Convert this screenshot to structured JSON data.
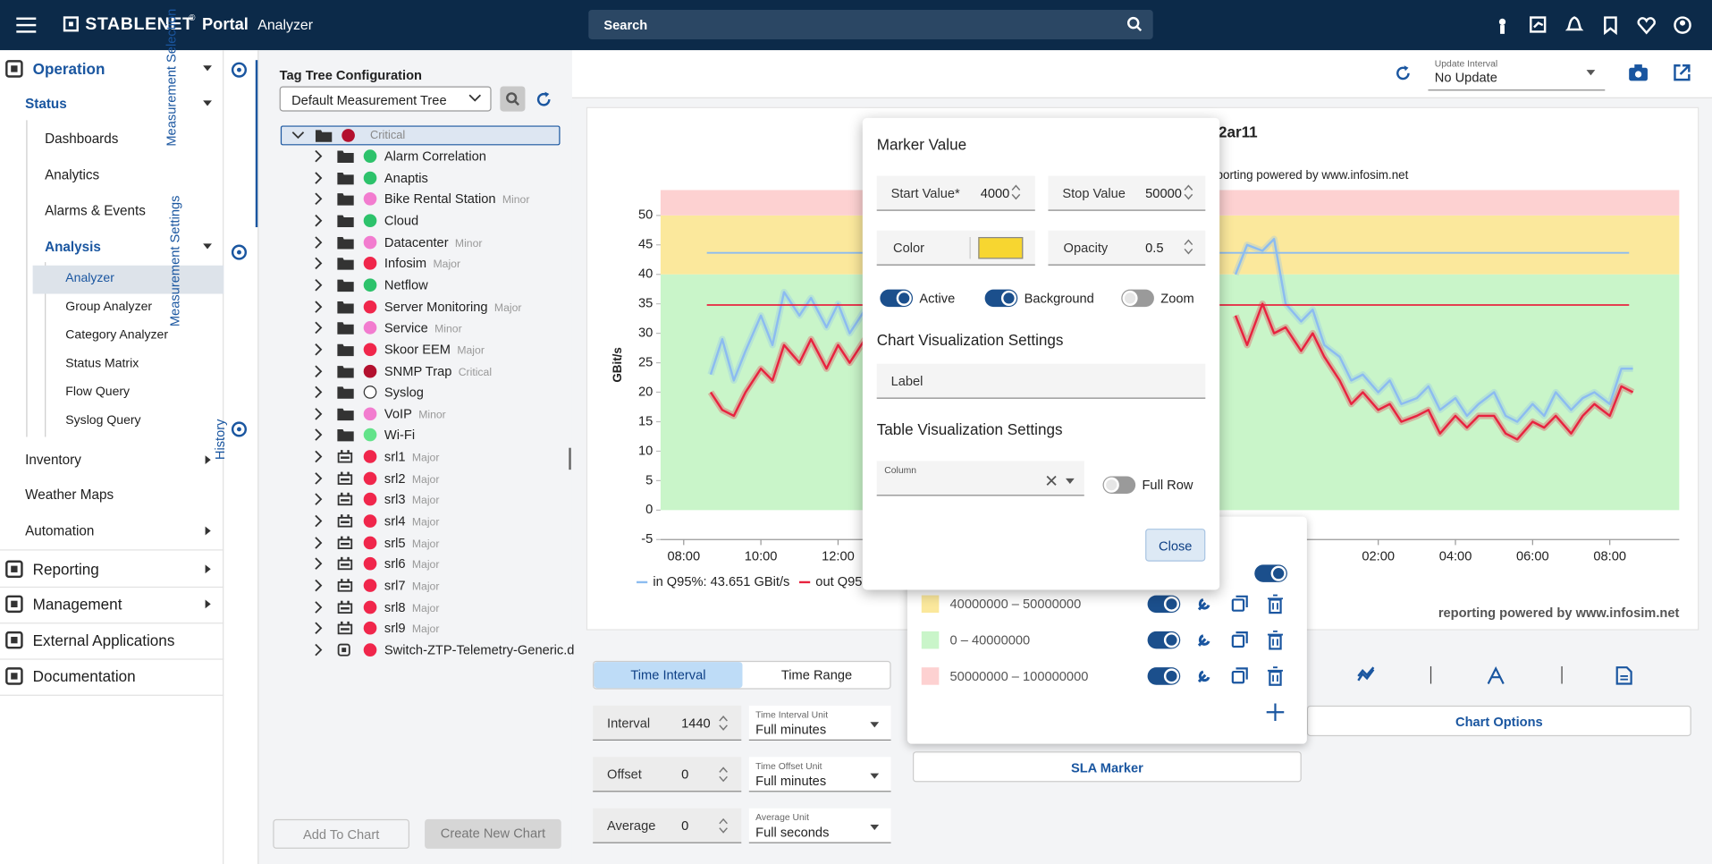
{
  "header": {
    "brand": "STABLENET",
    "reg": "®",
    "portal": "Portal",
    "page": "Analyzer",
    "search": "Search"
  },
  "nav": [
    {
      "label": "Operation",
      "level": 0,
      "active": true,
      "expanded": true
    },
    {
      "label": "Status",
      "level": 1,
      "active": true,
      "expanded": true
    },
    {
      "label": "Dashboards",
      "level": 2
    },
    {
      "label": "Analytics",
      "level": 2
    },
    {
      "label": "Alarms & Events",
      "level": 2
    },
    {
      "label": "Analysis",
      "level": 2,
      "active": true,
      "expanded": true
    },
    {
      "label": "Analyzer",
      "level": 3,
      "active": true,
      "selected": true
    },
    {
      "label": "Group Analyzer",
      "level": 3
    },
    {
      "label": "Category Analyzer",
      "level": 3
    },
    {
      "label": "Status Matrix",
      "level": 3
    },
    {
      "label": "Flow Query",
      "level": 3
    },
    {
      "label": "Syslog Query",
      "level": 3
    },
    {
      "label": "Inventory",
      "level": 1,
      "expanded": false
    },
    {
      "label": "Weather Maps",
      "level": 1
    },
    {
      "label": "Automation",
      "level": 1,
      "expanded": false
    },
    {
      "label": "Reporting",
      "level": 0,
      "expanded": false
    },
    {
      "label": "Management",
      "level": 0,
      "expanded": false
    },
    {
      "label": "External Applications",
      "level": 0
    },
    {
      "label": "Documentation",
      "level": 0
    }
  ],
  "side_tabs": [
    "Measurement Selection",
    "Measurement Settings",
    "History"
  ],
  "tag_tree": {
    "title": "Tag Tree Configuration",
    "selected_tree": "Default Measurement Tree",
    "root": {
      "label": "Critical",
      "color": "#b3102e"
    },
    "items": [
      {
        "label": "Alarm Correlation",
        "color": "#2dc26b"
      },
      {
        "label": "Anaptis",
        "color": "#2dc26b"
      },
      {
        "label": "Bike Rental Station",
        "color": "#f27ccf",
        "severity": "Minor"
      },
      {
        "label": "Cloud",
        "color": "#2dc26b"
      },
      {
        "label": "Datacenter",
        "color": "#f27ccf",
        "severity": "Minor"
      },
      {
        "label": "Infosim",
        "color": "#f0264b",
        "severity": "Major"
      },
      {
        "label": "Netflow",
        "color": "#2dc26b"
      },
      {
        "label": "Server Monitoring",
        "color": "#f0264b",
        "severity": "Major"
      },
      {
        "label": "Service",
        "color": "#f27ccf",
        "severity": "Minor"
      },
      {
        "label": "Skoor EEM",
        "color": "#f0264b",
        "severity": "Major"
      },
      {
        "label": "SNMP Trap",
        "color": "#b3102e",
        "severity": "Critical"
      },
      {
        "label": "Syslog",
        "color": null
      },
      {
        "label": "VoIP",
        "color": "#f27ccf",
        "severity": "Minor"
      },
      {
        "label": "Wi-Fi",
        "color": "#63e38a"
      },
      {
        "label": "srl1",
        "color": "#f0264b",
        "severity": "Major",
        "kind": "device"
      },
      {
        "label": "srl2",
        "color": "#f0264b",
        "severity": "Major",
        "kind": "device"
      },
      {
        "label": "srl3",
        "color": "#f0264b",
        "severity": "Major",
        "kind": "device"
      },
      {
        "label": "srl4",
        "color": "#f0264b",
        "severity": "Major",
        "kind": "device"
      },
      {
        "label": "srl5",
        "color": "#f0264b",
        "severity": "Major",
        "kind": "device"
      },
      {
        "label": "srl6",
        "color": "#f0264b",
        "severity": "Major",
        "kind": "device"
      },
      {
        "label": "srl7",
        "color": "#f0264b",
        "severity": "Major",
        "kind": "device"
      },
      {
        "label": "srl8",
        "color": "#f0264b",
        "severity": "Major",
        "kind": "device"
      },
      {
        "label": "srl9",
        "color": "#f0264b",
        "severity": "Major",
        "kind": "device"
      },
      {
        "label": "Switch-ZTP-Telemetry-Generic.d",
        "color": "#f0264b",
        "kind": "template"
      }
    ],
    "buttons": [
      "Add To Chart",
      "Create New Chart"
    ]
  },
  "toolbar": {
    "update_label": "Update Interval",
    "update_value": "No Update"
  },
  "chart_data": {
    "type": "line",
    "title": "2ar11",
    "subtitle": "porting powered by www.infosim.net",
    "footer": "reporting powered by www.infosim.net",
    "y_label": "GBit/s",
    "xlim": [
      7.4,
      33.8
    ],
    "ylim": [
      -5,
      54.3
    ],
    "xticks": [
      {
        "value": 8,
        "label": "08:00"
      },
      {
        "value": 10,
        "label": "10:00"
      },
      {
        "value": 12,
        "label": "12:00"
      },
      {
        "value": 26,
        "label": "02:00"
      },
      {
        "value": 28,
        "label": "04:00"
      },
      {
        "value": 30,
        "label": "06:00"
      },
      {
        "value": 32,
        "label": "08:00"
      }
    ],
    "yticks": [
      -5,
      0,
      5,
      10,
      15,
      20,
      25,
      30,
      35,
      40,
      45,
      50
    ],
    "bands": [
      {
        "from": 0,
        "to": 40,
        "color": "#c9f5c9"
      },
      {
        "from": 40,
        "to": 50,
        "color": "#fbe89c"
      },
      {
        "from": 50,
        "to": 100,
        "color": "#fdd1d1"
      }
    ],
    "q95_x": [
      8.6,
      32.5
    ],
    "x": [
      8.7,
      9.0,
      9.3,
      9.6,
      10.0,
      10.3,
      10.6,
      11.0,
      11.3,
      11.7,
      12.0,
      12.3,
      12.7,
      17.5,
      22.3,
      22.6,
      23.0,
      23.3,
      23.6,
      24.0,
      24.3,
      24.6,
      25.0,
      25.3,
      25.6,
      26.0,
      26.3,
      26.6,
      27.0,
      27.3,
      27.6,
      28.0,
      28.3,
      28.6,
      29.0,
      29.3,
      29.6,
      30.0,
      30.3,
      30.6,
      31.0,
      31.3,
      31.6,
      32.0,
      32.3,
      32.6
    ],
    "series": [
      {
        "name": "in Q95%: 43.651 GBit/s",
        "color": "#8cbcf0",
        "q95": 43.651,
        "values": [
          23,
          29,
          22,
          27,
          33,
          28,
          37,
          33,
          36,
          31,
          35,
          30,
          34,
          null,
          40,
          45,
          44,
          46,
          35,
          32,
          34,
          28,
          26,
          22,
          23,
          20,
          22,
          18,
          19,
          21,
          17,
          19,
          16,
          18,
          20,
          16,
          15,
          18,
          16,
          20,
          17,
          19,
          20,
          18,
          24,
          24
        ]
      },
      {
        "name": "out Q95%",
        "color": "#e8233f",
        "q95": 34.8,
        "values": [
          20,
          17,
          16,
          20,
          24,
          22,
          28,
          25,
          29,
          24,
          28,
          25,
          29,
          null,
          33,
          28,
          35,
          30,
          31,
          27,
          30,
          26,
          22,
          18,
          20,
          17,
          18,
          15,
          16,
          17,
          13,
          16,
          14,
          16,
          16,
          13,
          12,
          15,
          14,
          16,
          13,
          16,
          18,
          16,
          21,
          20
        ]
      }
    ]
  },
  "popup": {
    "title": "Marker Value",
    "start_label": "Start Value*",
    "start_value": 4000,
    "stop_label": "Stop Value",
    "stop_value": 50000,
    "color_label": "Color",
    "color": "#f7d630",
    "opacity_label": "Opacity",
    "opacity": 0.5,
    "toggles": [
      {
        "label": "Active",
        "on": true
      },
      {
        "label": "Background",
        "on": true
      },
      {
        "label": "Zoom",
        "on": false
      }
    ],
    "chart_section": "Chart Visualization Settings",
    "label_field": "Label",
    "table_section": "Table Visualization Settings",
    "column_field": "Column",
    "full_row": {
      "label": "Full Row",
      "on": false
    },
    "close": "Close"
  },
  "markers": {
    "all_on": true,
    "rows": [
      {
        "range": "40000000 – 50000000",
        "color": "#fbe89c",
        "on": true
      },
      {
        "range": "0 – 40000000",
        "color": "#c9f5c9",
        "on": true
      },
      {
        "range": "50000000 – 100000000",
        "color": "#fdd1d1",
        "on": true
      }
    ]
  },
  "time": {
    "tabs": [
      "Time Interval",
      "Time Range"
    ],
    "active_tab": 0,
    "rows": [
      {
        "label": "Interval",
        "value": 1440,
        "unit_label": "Time Interval Unit",
        "unit": "Full minutes"
      },
      {
        "label": "Offset",
        "value": 0,
        "unit_label": "Time Offset Unit",
        "unit": "Full minutes"
      },
      {
        "label": "Average",
        "value": 0,
        "unit_label": "Average Unit",
        "unit": "Full seconds"
      }
    ]
  },
  "chart_buttons": {
    "options": "Chart Options",
    "sla": "SLA Marker"
  }
}
